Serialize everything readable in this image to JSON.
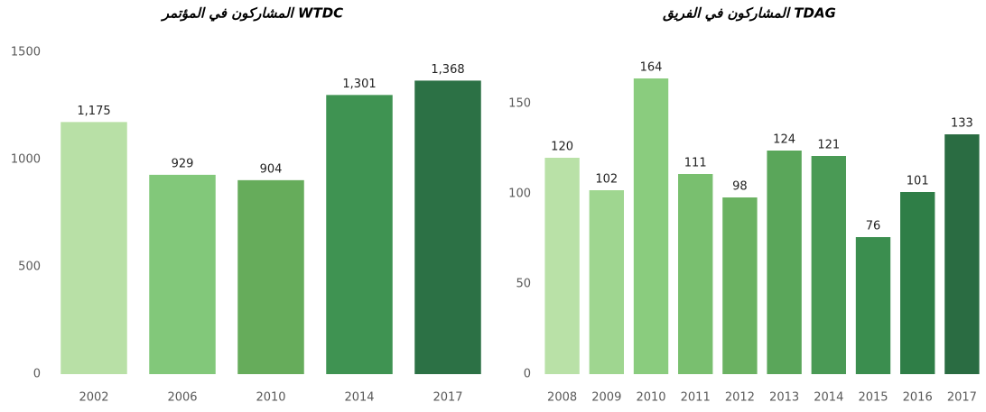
{
  "chart_data": [
    {
      "type": "bar",
      "title": "المشاركون في المؤتمر WTDC",
      "categories": [
        "2002",
        "2006",
        "2010",
        "2014",
        "2017"
      ],
      "values": [
        1175,
        929,
        904,
        1301,
        1368
      ],
      "value_labels": [
        "1,175",
        "929",
        "904",
        "1,301",
        "1,368"
      ],
      "colors": [
        "#b8e0a6",
        "#82c87a",
        "#66ac5b",
        "#3f9352",
        "#2c7145"
      ],
      "ylim": [
        0,
        1500
      ],
      "yticks": [
        0,
        500,
        1000,
        1500
      ],
      "grid": false
    },
    {
      "type": "bar",
      "title": "المشاركون في الفريق TDAG",
      "categories": [
        "2008",
        "2009",
        "2010",
        "2011",
        "2012",
        "2013",
        "2014",
        "2015",
        "2016",
        "2017"
      ],
      "values": [
        120,
        102,
        164,
        111,
        98,
        124,
        121,
        76,
        101,
        133
      ],
      "colors": [
        "#b9e1a7",
        "#9fd690",
        "#8acc7e",
        "#79bf6f",
        "#6bb262",
        "#5aa65a",
        "#4a9a55",
        "#3b8e4f",
        "#2f7e47",
        "#2a6c42"
      ],
      "ylim": [
        0,
        175
      ],
      "yticks": [
        0,
        50,
        100,
        150
      ],
      "grid": false
    }
  ]
}
